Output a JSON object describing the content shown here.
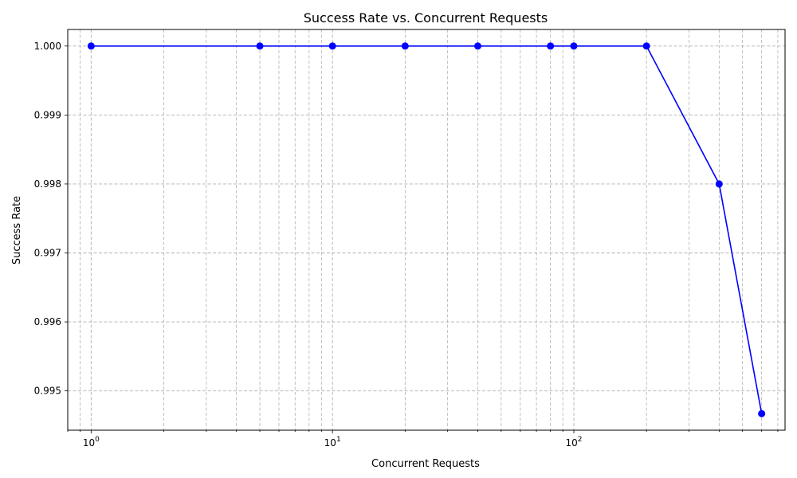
{
  "chart_data": {
    "type": "line",
    "title": "Success Rate vs. Concurrent Requests",
    "xlabel": "Concurrent Requests",
    "ylabel": "Success Rate",
    "x_scale": "log",
    "x": [
      1,
      5,
      10,
      20,
      40,
      80,
      100,
      200,
      400,
      600
    ],
    "y": [
      1.0,
      1.0,
      1.0,
      1.0,
      1.0,
      1.0,
      1.0,
      1.0,
      0.998,
      0.99467
    ],
    "xlim": [
      0.8,
      750
    ],
    "ylim": [
      0.99443,
      1.00024
    ],
    "x_major_ticks": [
      {
        "value": 1,
        "base": "10",
        "exponent": "0"
      },
      {
        "value": 10,
        "base": "10",
        "exponent": "1"
      },
      {
        "value": 100,
        "base": "10",
        "exponent": "2"
      }
    ],
    "y_ticks": [
      {
        "value": 0.995,
        "label": "0.995"
      },
      {
        "value": 0.996,
        "label": "0.996"
      },
      {
        "value": 0.997,
        "label": "0.997"
      },
      {
        "value": 0.998,
        "label": "0.998"
      },
      {
        "value": 0.999,
        "label": "0.999"
      },
      {
        "value": 1.0,
        "label": "1.000"
      }
    ],
    "grid": true,
    "grid_minor": true,
    "line_color": "#0000ff",
    "marker_color": "#0000ff",
    "grid_color": "#b0b0b0"
  }
}
